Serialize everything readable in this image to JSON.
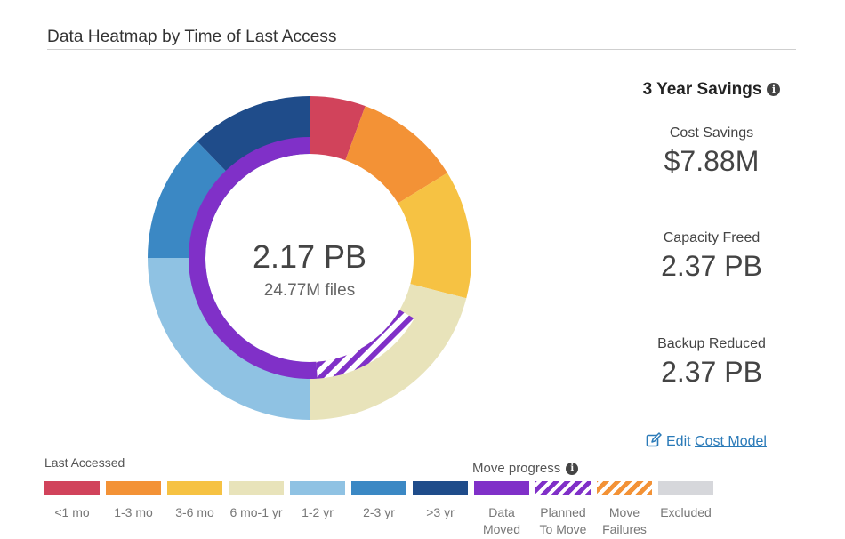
{
  "title": "Data Heatmap by Time of Last Access",
  "center": {
    "value": "2.17 PB",
    "files": "24.77M files"
  },
  "savings": {
    "title": "3 Year Savings",
    "cost_savings": {
      "label": "Cost Savings",
      "value": "$7.88M"
    },
    "capacity_freed": {
      "label": "Capacity Freed",
      "value": "2.37 PB"
    },
    "backup_reduced": {
      "label": "Backup Reduced",
      "value": "2.37 PB"
    }
  },
  "edit": {
    "prefix": "Edit",
    "link": "Cost Model"
  },
  "legend": {
    "heading": "Last Accessed",
    "move_heading": "Move progress",
    "items": [
      {
        "label": "<1 mo",
        "color": "#d1435b",
        "pattern": "solid"
      },
      {
        "label": "1-3 mo",
        "color": "#f39236",
        "pattern": "solid"
      },
      {
        "label": "3-6 mo",
        "color": "#f6c243",
        "pattern": "solid"
      },
      {
        "label": "6 mo-1 yr",
        "color": "#e8e3ba",
        "pattern": "solid"
      },
      {
        "label": "1-2 yr",
        "color": "#8fc2e3",
        "pattern": "solid"
      },
      {
        "label": "2-3 yr",
        "color": "#3b88c4",
        "pattern": "solid"
      },
      {
        "label": ">3 yr",
        "color": "#1f4c8a",
        "pattern": "solid"
      },
      {
        "label": "Data\nMoved",
        "color": "#8030c8",
        "pattern": "solid"
      },
      {
        "label": "Planned\nTo Move",
        "color": "#8030c8",
        "pattern": "striped"
      },
      {
        "label": "Move\nFailures",
        "color": "#f39236",
        "pattern": "striped"
      },
      {
        "label": "Excluded",
        "color": "#d6d7db",
        "pattern": "solid"
      }
    ]
  },
  "chart_data": {
    "type": "pie",
    "rings": [
      {
        "name": "Last Accessed",
        "slices": [
          {
            "label": "<1 mo",
            "value": 5.6,
            "color": "#d1435b"
          },
          {
            "label": "1-3 mo",
            "value": 10.6,
            "color": "#f39236"
          },
          {
            "label": "3-6 mo",
            "value": 12.8,
            "color": "#f6c243"
          },
          {
            "label": "6 mo-1 yr",
            "value": 21.0,
            "color": "#e8e3ba"
          },
          {
            "label": "1-2 yr",
            "value": 25.0,
            "color": "#8fc2e3"
          },
          {
            "label": "2-3 yr",
            "value": 12.8,
            "color": "#3b88c4"
          },
          {
            "label": ">3 yr",
            "value": 12.2,
            "color": "#1f4c8a"
          }
        ]
      },
      {
        "name": "Move progress",
        "slices": [
          {
            "label": "Planned To Move",
            "value": 17.6,
            "color": "#8030c8",
            "pattern": "striped"
          },
          {
            "label": "Data Moved",
            "value": 57.4,
            "color": "#8030c8",
            "pattern": "solid"
          }
        ],
        "start_angle_deg": 120,
        "end_angle_deg": 360
      }
    ]
  }
}
